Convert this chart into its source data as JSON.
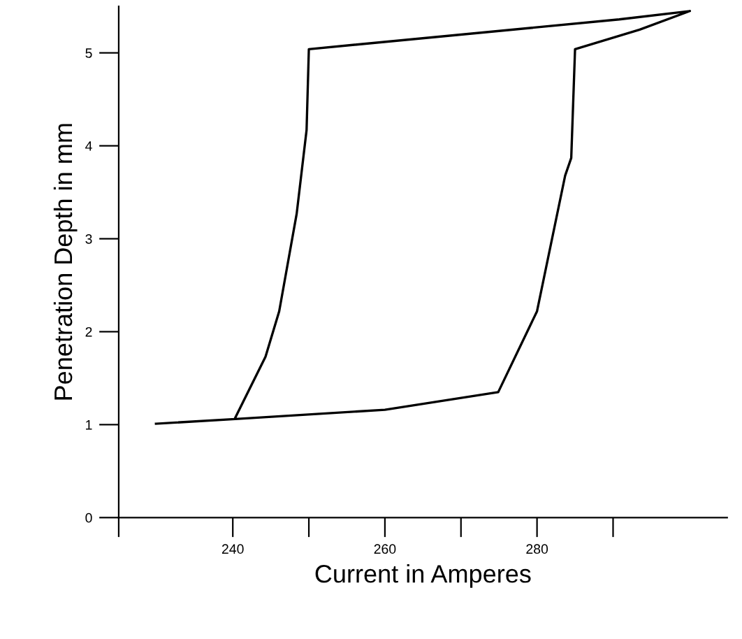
{
  "chart_data": {
    "type": "line",
    "xlabel": "Current in Amperes",
    "ylabel": "Penetration Depth in mm",
    "x": [
      229.9,
      240.3,
      260,
      274.9,
      280,
      283.7,
      284.5,
      285,
      293.5,
      300.1,
      290.8,
      250,
      249.7,
      248.4,
      246.1,
      244.3,
      240.3
    ],
    "series": [
      {
        "color": "#000000",
        "values": [
          1.01,
          1.06,
          1.16,
          1.35,
          2.22,
          3.68,
          3.87,
          5.04,
          5.25,
          5.45,
          5.36,
          5.04,
          4.17,
          3.27,
          2.22,
          1.73,
          1.07
        ]
      }
    ],
    "xlim": [
      225,
      305
    ],
    "ylim": [
      0,
      5.5
    ],
    "xticks": [
      {
        "value": 225,
        "label": null
      },
      240,
      {
        "value": 250,
        "label": null
      },
      260,
      {
        "value": 270,
        "label": null
      },
      280,
      {
        "value": 290,
        "label": null
      }
    ],
    "yticks": [
      0,
      1,
      2,
      3,
      4,
      5
    ],
    "grid": false,
    "legend": false,
    "marker": "none",
    "line_style": "solid"
  }
}
